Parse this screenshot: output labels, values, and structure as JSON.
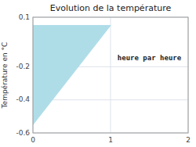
{
  "chart_data": {
    "type": "polygon",
    "title": "Evolution de la température",
    "y_label": "Température en °C",
    "annotations": [
      {
        "text": "heure par heure",
        "x": 1.5,
        "y": -0.13
      }
    ],
    "x": [
      0,
      1,
      0
    ],
    "values": [
      0.05,
      0.05,
      -0.55
    ],
    "color": "#aedde8",
    "xlim": [
      0,
      2
    ],
    "ylim": [
      -0.6,
      0.1
    ],
    "xticks": [
      0,
      1,
      2
    ],
    "yticks": [
      -0.6,
      -0.4,
      -0.2,
      0.1
    ],
    "grid": true
  }
}
